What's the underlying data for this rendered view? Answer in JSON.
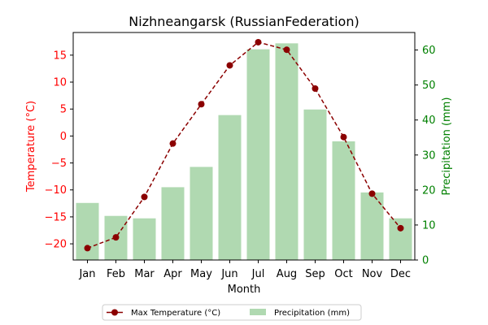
{
  "chart_data": {
    "type": "bar+line",
    "title": "Nizhneangarsk (RussianFederation)",
    "xlabel": "Month",
    "categories": [
      "Jan",
      "Feb",
      "Mar",
      "Apr",
      "May",
      "Jun",
      "Jul",
      "Aug",
      "Sep",
      "Oct",
      "Nov",
      "Dec"
    ],
    "y_left": {
      "label": "Temperature (°C)",
      "color": "#ff0000",
      "range": [
        -23,
        19.2
      ],
      "ticks": [
        -20,
        -15,
        -10,
        -5,
        0,
        5,
        10,
        15
      ],
      "tick_labels": [
        "−20",
        "−15",
        "−10",
        "−5",
        "0",
        "5",
        "10",
        "15"
      ]
    },
    "y_right": {
      "label": "Precipitation (mm)",
      "color": "#008000",
      "range": [
        0,
        65
      ],
      "ticks": [
        0,
        10,
        20,
        30,
        40,
        50,
        60
      ],
      "tick_labels": [
        "0",
        "10",
        "20",
        "30",
        "40",
        "50",
        "60"
      ]
    },
    "series": [
      {
        "name": "Max Temperature (°C)",
        "type": "line",
        "axis": "left",
        "color": "#8b0000",
        "values": [
          -20.8,
          -18.8,
          -11.3,
          -1.4,
          5.9,
          13.1,
          17.4,
          16.0,
          8.8,
          -0.2,
          -10.7,
          -17.1
        ]
      },
      {
        "name": "Precipitation (mm)",
        "type": "bar",
        "axis": "right",
        "color": "#b0d9b1",
        "values": [
          16.3,
          12.6,
          11.9,
          20.8,
          26.6,
          41.4,
          60.2,
          61.9,
          43.0,
          33.9,
          19.3,
          11.9
        ]
      }
    ],
    "legend": {
      "placement": "bottom-center",
      "entries": [
        "Max Temperature (°C)",
        "Precipitation (mm)"
      ]
    },
    "grid": false
  }
}
